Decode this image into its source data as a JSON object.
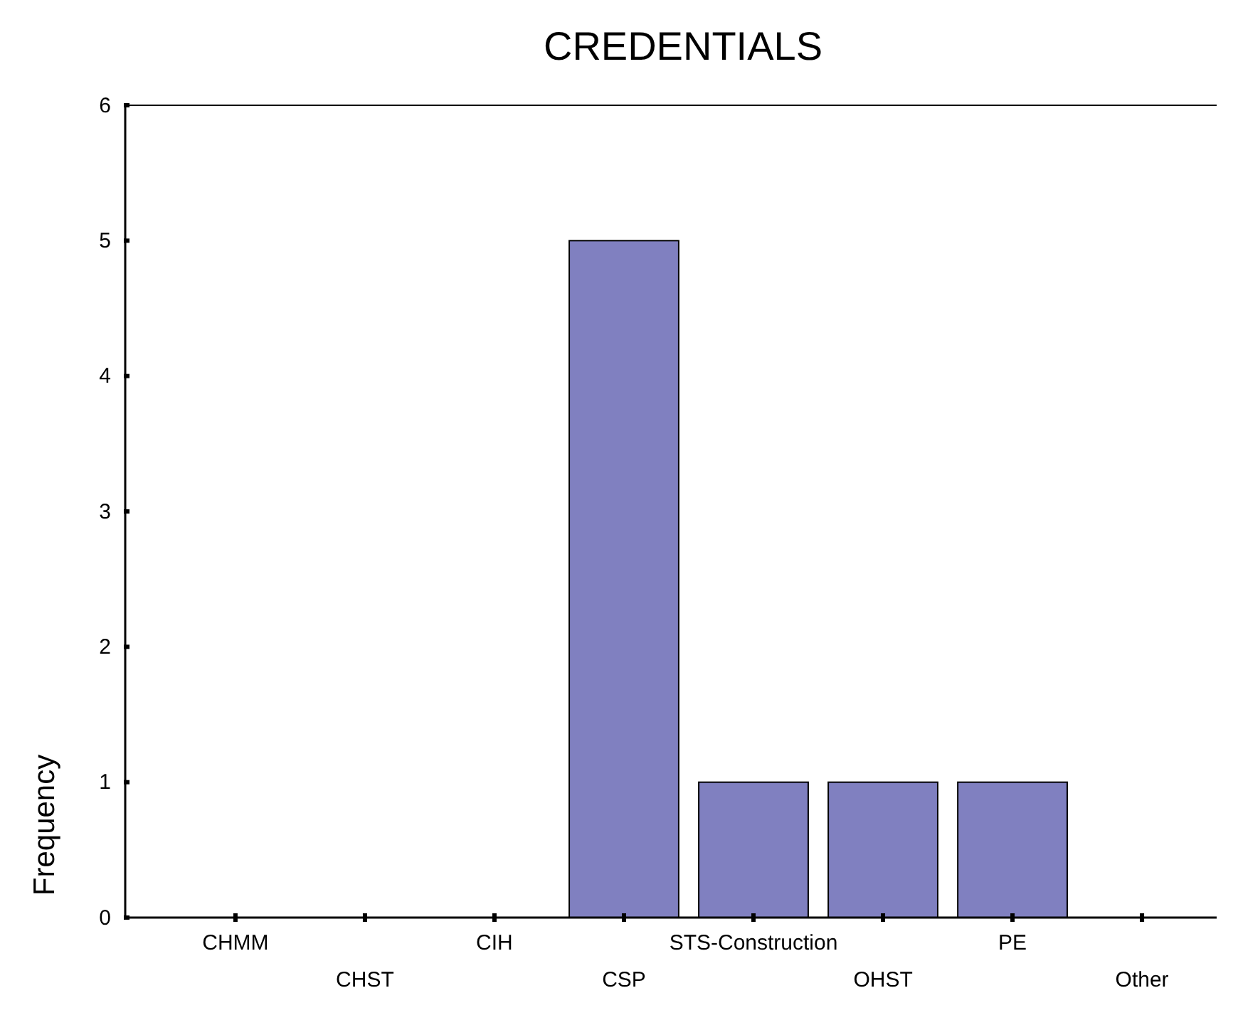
{
  "chart_data": {
    "type": "bar",
    "title": "CREDENTIALS",
    "ylabel": "Frequency",
    "categories": [
      "CHMM",
      "CHST",
      "CIH",
      "CSP",
      "STS-Construction",
      "OHST",
      "PE",
      "Other"
    ],
    "values": [
      0,
      0,
      0,
      5,
      1,
      1,
      1,
      0
    ],
    "color": "#8080c0",
    "ylim": [
      0,
      6
    ],
    "yticks": [
      0,
      1,
      2,
      3,
      4,
      5,
      6
    ],
    "grid": false
  }
}
